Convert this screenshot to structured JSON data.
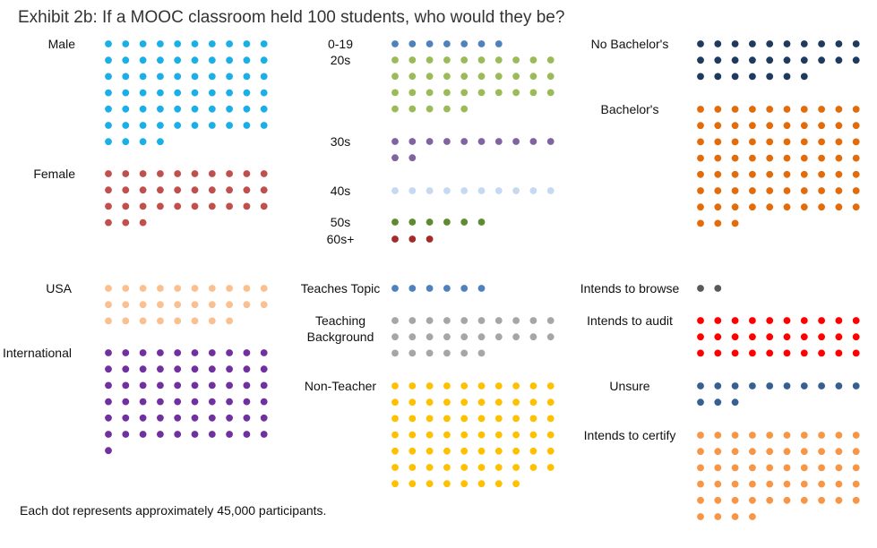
{
  "title": "Exhibit 2b: If a MOOC classroom held 100 students, who would they be?",
  "note": "Each dot represents approximately 45,000 participants.",
  "chart_data": {
    "type": "unit-dot",
    "units_per_chart": 100,
    "panels": [
      {
        "id": "gender",
        "categories": [
          {
            "label": "Male",
            "count": 64,
            "color": "#1AAFE6"
          },
          {
            "label": "Female",
            "count": 33,
            "color": "#C0504D"
          }
        ]
      },
      {
        "id": "age",
        "categories": [
          {
            "label": "0-19",
            "count": 7,
            "color": "#4F81BD"
          },
          {
            "label": "20s",
            "count": 35,
            "color": "#9BBB59"
          },
          {
            "label": "30s",
            "count": 12,
            "color": "#8064A2"
          },
          {
            "label": "40s",
            "count": 10,
            "color": "#C6D9F0"
          },
          {
            "label": "50s",
            "count": 6,
            "color": "#5E8A30"
          },
          {
            "label": "60s+",
            "count": 3,
            "color": "#A52A2A"
          }
        ]
      },
      {
        "id": "education",
        "categories": [
          {
            "label": "No Bachelor's",
            "count": 27,
            "color": "#1F3A5F"
          },
          {
            "label": "Bachelor's",
            "count": 73,
            "color": "#E36C0A"
          }
        ]
      },
      {
        "id": "location",
        "categories": [
          {
            "label": "USA",
            "count": 28,
            "color": "#FAC090"
          },
          {
            "label": "International",
            "count": 61,
            "color": "#7030A0"
          }
        ]
      },
      {
        "id": "teaching",
        "categories": [
          {
            "label": "Teaches Topic",
            "count": 6,
            "color": "#4F81BD"
          },
          {
            "label": "Teaching Background",
            "count": 26,
            "color": "#A6A6A6"
          },
          {
            "label": "Non-Teacher",
            "count": 68,
            "color": "#FFC000"
          }
        ]
      },
      {
        "id": "intent",
        "categories": [
          {
            "label": "Intends to browse",
            "count": 2,
            "color": "#595959"
          },
          {
            "label": "Intends to audit",
            "count": 30,
            "color": "#FF0000"
          },
          {
            "label": "Unsure",
            "count": 13,
            "color": "#366092"
          },
          {
            "label": "Intends to certify",
            "count": 54,
            "color": "#F79646"
          }
        ]
      }
    ]
  }
}
